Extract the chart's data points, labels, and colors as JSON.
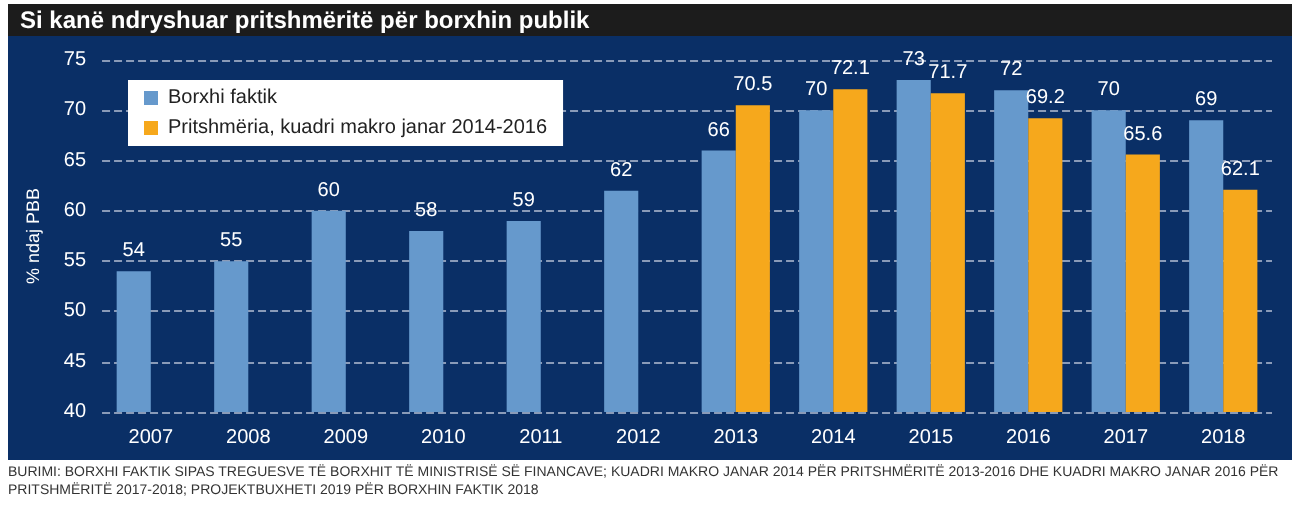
{
  "chart_data": {
    "type": "bar",
    "title": "Si kanë ndryshuar pritshmëritë për borxhin publik",
    "ylabel": "% ndaj PBB",
    "categories": [
      "2007",
      "2008",
      "2009",
      "2010",
      "2011",
      "2012",
      "2013",
      "2014",
      "2015",
      "2016",
      "2017",
      "2018"
    ],
    "series": [
      {
        "name": "Borxhi faktik",
        "color": "#6699cc",
        "values": [
          54,
          55,
          60,
          58,
          59,
          62,
          66,
          70,
          73,
          72,
          70,
          69
        ]
      },
      {
        "name": "Pritshmëria, kuadri makro janar 2014-2016",
        "color": "#f6a81c",
        "values": [
          null,
          null,
          null,
          null,
          null,
          null,
          70.5,
          72.1,
          71.7,
          69.2,
          65.6,
          62.1
        ]
      }
    ],
    "ylim": [
      40,
      75
    ],
    "yticks": [
      40,
      45,
      50,
      55,
      60,
      65,
      70,
      75
    ],
    "grid": "y",
    "legend": "top left",
    "data_labels": true,
    "annotations": [
      "BURIMI: BORXHI FAKTIK SIPAS TREGUESVE TË BORXHIT TË MINISTRISË SË FINANCAVE; KUADRI MAKRO JANAR 2014 PËR PRITSHMËRITË 2013-2016 DHE KUADRI MAKRO JANAR 2016 PËR PRITSHMËRITË 2017-2018; PROJEKTBUXHETI 2019 PËR BORXHIN FAKTIK 2018"
    ]
  }
}
